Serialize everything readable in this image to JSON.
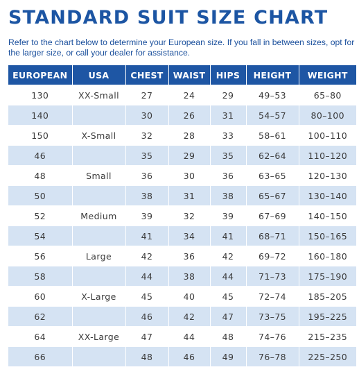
{
  "title": "STANDARD SUIT SIZE CHART",
  "intro": "Refer to the chart below to determine your European size. If you fall in between sizes, opt for the larger size, or call your dealer for assistance.",
  "colors": {
    "header_bg": "#1e56a4",
    "title": "#1c55a3",
    "stripe": "#d5e3f3"
  },
  "table": {
    "headers": [
      "EUROPEAN",
      "USA",
      "CHEST",
      "WAIST",
      "HIPS",
      "HEIGHT",
      "WEIGHT"
    ],
    "rows": [
      [
        "130",
        "XX-Small",
        "27",
        "24",
        "29",
        "49–53",
        "65–80"
      ],
      [
        "140",
        "",
        "30",
        "26",
        "31",
        "54–57",
        "80–100"
      ],
      [
        "150",
        "X-Small",
        "32",
        "28",
        "33",
        "58–61",
        "100–110"
      ],
      [
        "46",
        "",
        "35",
        "29",
        "35",
        "62–64",
        "110–120"
      ],
      [
        "48",
        "Small",
        "36",
        "30",
        "36",
        "63–65",
        "120–130"
      ],
      [
        "50",
        "",
        "38",
        "31",
        "38",
        "65–67",
        "130–140"
      ],
      [
        "52",
        "Medium",
        "39",
        "32",
        "39",
        "67–69",
        "140–150"
      ],
      [
        "54",
        "",
        "41",
        "34",
        "41",
        "68–71",
        "150–165"
      ],
      [
        "56",
        "Large",
        "42",
        "36",
        "42",
        "69–72",
        "160–180"
      ],
      [
        "58",
        "",
        "44",
        "38",
        "44",
        "71–73",
        "175–190"
      ],
      [
        "60",
        "X-Large",
        "45",
        "40",
        "45",
        "72–74",
        "185–205"
      ],
      [
        "62",
        "",
        "46",
        "42",
        "47",
        "73–75",
        "195–225"
      ],
      [
        "64",
        "XX-Large",
        "47",
        "44",
        "48",
        "74–76",
        "215–235"
      ],
      [
        "66",
        "",
        "48",
        "46",
        "49",
        "76–78",
        "225–250"
      ]
    ]
  }
}
